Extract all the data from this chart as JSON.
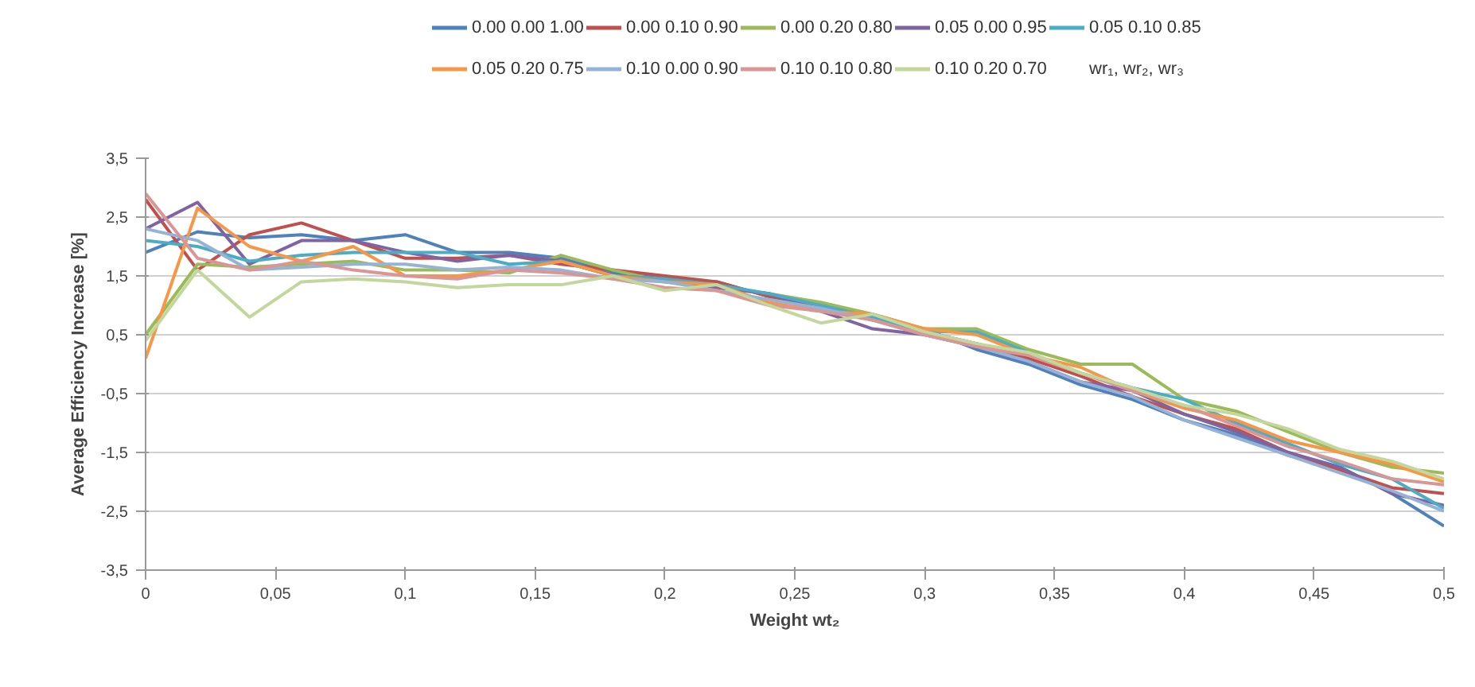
{
  "chart_data": {
    "type": "line",
    "xlabel": "Weight wt₂",
    "ylabel": "Average Efficiency Increase [%]",
    "legend_title": "wr₁, wr₂, wr₃",
    "x": [
      0,
      0.02,
      0.04,
      0.06,
      0.08,
      0.1,
      0.12,
      0.14,
      0.16,
      0.18,
      0.2,
      0.22,
      0.24,
      0.26,
      0.28,
      0.3,
      0.32,
      0.34,
      0.36,
      0.38,
      0.4,
      0.42,
      0.44,
      0.46,
      0.48,
      0.5
    ],
    "xlim": [
      0,
      0.5
    ],
    "xticks": [
      0,
      {
        "value": 0.05,
        "label": "0,05"
      },
      {
        "value": 0.1,
        "label": "0,1"
      },
      {
        "value": 0.15,
        "label": "0,15"
      },
      {
        "value": 0.2,
        "label": "0,2"
      },
      {
        "value": 0.25,
        "label": "0,25"
      },
      {
        "value": 0.3,
        "label": "0,3"
      },
      {
        "value": 0.35,
        "label": "0,35"
      },
      {
        "value": 0.4,
        "label": "0,4"
      },
      {
        "value": 0.45,
        "label": "0,45"
      },
      {
        "value": 0.5,
        "label": "0,5"
      }
    ],
    "ylim": [
      -3.5,
      3.5
    ],
    "yticks": [
      {
        "value": -3.5,
        "label": "-3,5"
      },
      {
        "value": -2.5,
        "label": "-2,5"
      },
      {
        "value": -1.5,
        "label": "-1,5"
      },
      {
        "value": -0.5,
        "label": "-0,5"
      },
      {
        "value": 0.5,
        "label": "0,5"
      },
      {
        "value": 1.5,
        "label": "1,5"
      },
      {
        "value": 2.5,
        "label": "2,5"
      },
      {
        "value": 3.5,
        "label": "3,5"
      }
    ],
    "grid": "y",
    "legend": "top",
    "marker": "none",
    "line_style": "solid",
    "series": [
      {
        "name": "0.00 0.00 1.00",
        "color": "#4f81bd",
        "values": [
          1.9,
          2.25,
          2.15,
          2.2,
          2.1,
          2.2,
          1.9,
          1.9,
          1.8,
          1.55,
          1.45,
          1.4,
          1.15,
          1.0,
          0.8,
          0.6,
          0.25,
          0.0,
          -0.35,
          -0.6,
          -0.95,
          -1.2,
          -1.55,
          -1.75,
          -2.2,
          -2.75
        ]
      },
      {
        "name": "0.00 0.10 0.90",
        "color": "#c0504d",
        "values": [
          2.8,
          1.6,
          2.2,
          2.4,
          2.1,
          1.8,
          1.8,
          1.85,
          1.7,
          1.6,
          1.5,
          1.4,
          1.15,
          1.0,
          0.75,
          0.55,
          0.35,
          0.1,
          -0.2,
          -0.55,
          -0.85,
          -1.1,
          -1.5,
          -1.8,
          -2.1,
          -2.2
        ]
      },
      {
        "name": "0.00 0.20 0.80",
        "color": "#9bbb59",
        "values": [
          0.5,
          1.7,
          1.65,
          1.7,
          1.75,
          1.6,
          1.6,
          1.55,
          1.85,
          1.6,
          1.4,
          1.3,
          1.2,
          1.05,
          0.85,
          0.6,
          0.6,
          0.25,
          0.0,
          0.0,
          -0.6,
          -0.8,
          -1.15,
          -1.5,
          -1.75,
          -1.85
        ]
      },
      {
        "name": "0.05 0.00 0.95",
        "color": "#8064a2",
        "values": [
          2.3,
          2.75,
          1.7,
          2.1,
          2.1,
          1.9,
          1.75,
          1.85,
          1.75,
          1.5,
          1.45,
          1.3,
          1.2,
          0.9,
          0.6,
          0.5,
          0.3,
          0.05,
          -0.3,
          -0.45,
          -0.85,
          -1.15,
          -1.5,
          -1.75,
          -2.2,
          -2.4
        ]
      },
      {
        "name": "0.05 0.10 0.85",
        "color": "#4bacc6",
        "values": [
          2.1,
          2.0,
          1.75,
          1.85,
          1.9,
          1.9,
          1.9,
          1.7,
          1.75,
          1.5,
          1.45,
          1.35,
          1.2,
          1.0,
          0.8,
          0.55,
          0.55,
          0.2,
          -0.15,
          -0.4,
          -0.6,
          -1.0,
          -1.35,
          -1.7,
          -1.95,
          -2.45
        ]
      },
      {
        "name": "0.05 0.20 0.75",
        "color": "#f79646",
        "values": [
          0.1,
          2.65,
          2.0,
          1.75,
          2.0,
          1.5,
          1.5,
          1.6,
          1.75,
          1.5,
          1.4,
          1.35,
          1.05,
          0.9,
          0.85,
          0.6,
          0.5,
          0.15,
          -0.05,
          -0.45,
          -0.75,
          -0.95,
          -1.3,
          -1.5,
          -1.7,
          -2.0
        ]
      },
      {
        "name": "0.10 0.00 0.90",
        "color": "#95b3d7",
        "values": [
          2.3,
          2.1,
          1.6,
          1.65,
          1.7,
          1.7,
          1.6,
          1.65,
          1.6,
          1.45,
          1.4,
          1.25,
          1.1,
          0.95,
          0.75,
          0.5,
          0.3,
          0.05,
          -0.3,
          -0.55,
          -0.95,
          -1.25,
          -1.55,
          -1.85,
          -2.15,
          -2.5
        ]
      },
      {
        "name": "0.10 0.10 0.80",
        "color": "#d99694",
        "values": [
          2.9,
          1.8,
          1.6,
          1.75,
          1.6,
          1.5,
          1.45,
          1.6,
          1.55,
          1.45,
          1.3,
          1.25,
          1.0,
          0.9,
          0.75,
          0.5,
          0.3,
          0.15,
          -0.15,
          -0.45,
          -0.7,
          -1.05,
          -1.4,
          -1.65,
          -1.95,
          -2.05
        ]
      },
      {
        "name": "0.10 0.20 0.70",
        "color": "#c3d69b",
        "values": [
          0.4,
          1.6,
          0.8,
          1.4,
          1.45,
          1.4,
          1.3,
          1.35,
          1.35,
          1.5,
          1.25,
          1.35,
          1.0,
          0.7,
          0.85,
          0.55,
          0.35,
          0.2,
          -0.15,
          -0.4,
          -0.7,
          -0.85,
          -1.1,
          -1.45,
          -1.65,
          -1.95
        ]
      }
    ]
  }
}
